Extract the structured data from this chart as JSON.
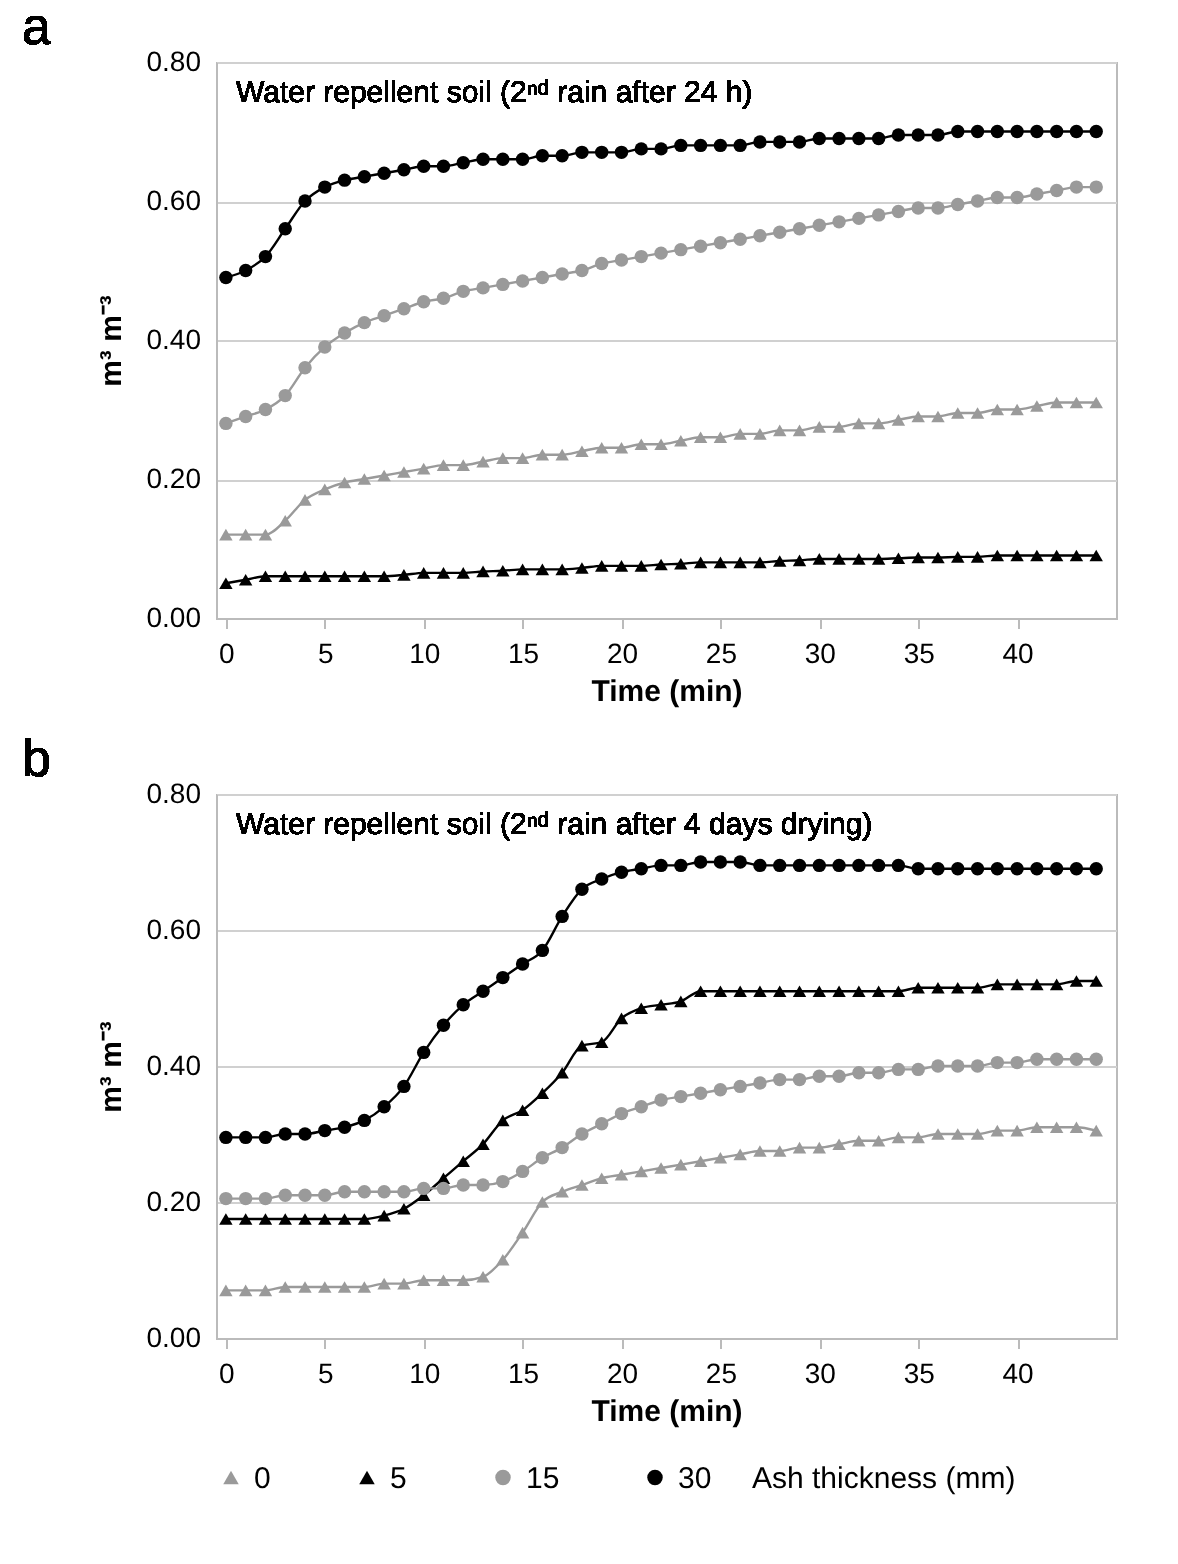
{
  "chart_data": [
    {
      "type": "line",
      "title": "Water repellent soil (2ⁿᵈ rain after 24 h)",
      "annotations": [
        "a"
      ],
      "xlabel": "Time (min)",
      "ylabel": "m³ m⁻³",
      "x": [
        0,
        1,
        2,
        3,
        4,
        5,
        6,
        7,
        8,
        9,
        10,
        11,
        12,
        13,
        14,
        15,
        16,
        17,
        18,
        19,
        20,
        21,
        22,
        23,
        24,
        25,
        26,
        27,
        28,
        29,
        30,
        31,
        32,
        33,
        34,
        35,
        36,
        37,
        38,
        39,
        40,
        41,
        42,
        43,
        44
      ],
      "xlim": [
        -0.5,
        45
      ],
      "xticks": [
        0,
        5,
        10,
        15,
        20,
        25,
        30,
        35,
        40
      ],
      "ylim": [
        0,
        0.8
      ],
      "yticks": [
        {
          "value": 0,
          "label": "0.00"
        },
        {
          "value": 0.2,
          "label": "0.20"
        },
        {
          "value": 0.4,
          "label": "0.40"
        },
        {
          "value": 0.6,
          "label": "0.60"
        },
        {
          "value": 0.8,
          "label": "0.80"
        }
      ],
      "grid": "y",
      "line_style": "solid",
      "series": [
        {
          "color": "#9a9a9a",
          "marker": "triangle",
          "values": [
            0.12,
            0.12,
            0.12,
            0.14,
            0.17,
            0.185,
            0.195,
            0.2,
            0.205,
            0.21,
            0.215,
            0.22,
            0.22,
            0.225,
            0.23,
            0.23,
            0.235,
            0.235,
            0.24,
            0.245,
            0.245,
            0.25,
            0.25,
            0.255,
            0.26,
            0.26,
            0.265,
            0.265,
            0.27,
            0.27,
            0.275,
            0.275,
            0.28,
            0.28,
            0.285,
            0.29,
            0.29,
            0.295,
            0.295,
            0.3,
            0.3,
            0.305,
            0.31,
            0.31,
            0.31
          ]
        },
        {
          "color": "#000000",
          "marker": "triangle",
          "values": [
            0.05,
            0.055,
            0.06,
            0.06,
            0.06,
            0.06,
            0.06,
            0.06,
            0.06,
            0.062,
            0.065,
            0.065,
            0.065,
            0.067,
            0.068,
            0.07,
            0.07,
            0.07,
            0.072,
            0.075,
            0.075,
            0.075,
            0.077,
            0.078,
            0.08,
            0.08,
            0.08,
            0.08,
            0.082,
            0.083,
            0.085,
            0.085,
            0.085,
            0.085,
            0.086,
            0.087,
            0.087,
            0.088,
            0.088,
            0.09,
            0.09,
            0.09,
            0.09,
            0.09,
            0.09
          ]
        },
        {
          "color": "#9a9a9a",
          "marker": "circle",
          "values": [
            0.28,
            0.29,
            0.3,
            0.32,
            0.36,
            0.39,
            0.41,
            0.425,
            0.435,
            0.445,
            0.455,
            0.46,
            0.47,
            0.475,
            0.48,
            0.485,
            0.49,
            0.495,
            0.5,
            0.51,
            0.515,
            0.52,
            0.525,
            0.53,
            0.535,
            0.54,
            0.545,
            0.55,
            0.555,
            0.56,
            0.565,
            0.57,
            0.575,
            0.58,
            0.585,
            0.59,
            0.59,
            0.595,
            0.6,
            0.605,
            0.605,
            0.61,
            0.615,
            0.62,
            0.62
          ]
        },
        {
          "color": "#000000",
          "marker": "circle",
          "values": [
            0.49,
            0.5,
            0.52,
            0.56,
            0.6,
            0.62,
            0.63,
            0.635,
            0.64,
            0.645,
            0.65,
            0.65,
            0.655,
            0.66,
            0.66,
            0.66,
            0.665,
            0.665,
            0.67,
            0.67,
            0.67,
            0.675,
            0.675,
            0.68,
            0.68,
            0.68,
            0.68,
            0.685,
            0.685,
            0.685,
            0.69,
            0.69,
            0.69,
            0.69,
            0.695,
            0.695,
            0.695,
            0.7,
            0.7,
            0.7,
            0.7,
            0.7,
            0.7,
            0.7,
            0.7
          ]
        }
      ]
    },
    {
      "type": "line",
      "title": "Water repellent soil (2ⁿᵈ rain after 4 days drying)",
      "annotations": [
        "b"
      ],
      "xlabel": "Time (min)",
      "ylabel": "m³ m⁻³",
      "legend_title": "Ash thickness (mm)",
      "x": [
        0,
        1,
        2,
        3,
        4,
        5,
        6,
        7,
        8,
        9,
        10,
        11,
        12,
        13,
        14,
        15,
        16,
        17,
        18,
        19,
        20,
        21,
        22,
        23,
        24,
        25,
        26,
        27,
        28,
        29,
        30,
        31,
        32,
        33,
        34,
        35,
        36,
        37,
        38,
        39,
        40,
        41,
        42,
        43,
        44
      ],
      "xlim": [
        -0.5,
        45
      ],
      "xticks": [
        0,
        5,
        10,
        15,
        20,
        25,
        30,
        35,
        40
      ],
      "ylim": [
        0,
        0.8
      ],
      "yticks": [
        {
          "value": 0,
          "label": "0.00"
        },
        {
          "value": 0.2,
          "label": "0.20"
        },
        {
          "value": 0.4,
          "label": "0.40"
        },
        {
          "value": 0.6,
          "label": "0.60"
        },
        {
          "value": 0.8,
          "label": "0.80"
        }
      ],
      "grid": "y",
      "legend": "bottom",
      "line_style": "solid",
      "series": [
        {
          "name": "0",
          "color": "#9a9a9a",
          "marker": "triangle",
          "values": [
            0.07,
            0.07,
            0.07,
            0.075,
            0.075,
            0.075,
            0.075,
            0.075,
            0.08,
            0.08,
            0.085,
            0.085,
            0.085,
            0.09,
            0.115,
            0.155,
            0.2,
            0.215,
            0.225,
            0.235,
            0.24,
            0.245,
            0.25,
            0.255,
            0.26,
            0.265,
            0.27,
            0.275,
            0.275,
            0.28,
            0.28,
            0.285,
            0.29,
            0.29,
            0.295,
            0.295,
            0.3,
            0.3,
            0.3,
            0.305,
            0.305,
            0.31,
            0.31,
            0.31,
            0.305
          ]
        },
        {
          "name": "5",
          "color": "#000000",
          "marker": "triangle",
          "values": [
            0.175,
            0.175,
            0.175,
            0.175,
            0.175,
            0.175,
            0.175,
            0.175,
            0.18,
            0.19,
            0.21,
            0.235,
            0.26,
            0.285,
            0.32,
            0.335,
            0.36,
            0.39,
            0.43,
            0.435,
            0.47,
            0.485,
            0.49,
            0.495,
            0.51,
            0.51,
            0.51,
            0.51,
            0.51,
            0.51,
            0.51,
            0.51,
            0.51,
            0.51,
            0.51,
            0.515,
            0.515,
            0.515,
            0.515,
            0.52,
            0.52,
            0.52,
            0.52,
            0.525,
            0.525
          ]
        },
        {
          "name": "15",
          "color": "#9a9a9a",
          "marker": "circle",
          "values": [
            0.205,
            0.205,
            0.205,
            0.21,
            0.21,
            0.21,
            0.215,
            0.215,
            0.215,
            0.215,
            0.22,
            0.22,
            0.225,
            0.225,
            0.23,
            0.245,
            0.265,
            0.28,
            0.3,
            0.315,
            0.33,
            0.34,
            0.35,
            0.355,
            0.36,
            0.365,
            0.37,
            0.375,
            0.38,
            0.38,
            0.385,
            0.385,
            0.39,
            0.39,
            0.395,
            0.395,
            0.4,
            0.4,
            0.4,
            0.405,
            0.405,
            0.41,
            0.41,
            0.41,
            0.41
          ]
        },
        {
          "name": "30",
          "color": "#000000",
          "marker": "circle",
          "values": [
            0.295,
            0.295,
            0.295,
            0.3,
            0.3,
            0.305,
            0.31,
            0.32,
            0.34,
            0.37,
            0.42,
            0.46,
            0.49,
            0.51,
            0.53,
            0.55,
            0.57,
            0.62,
            0.66,
            0.675,
            0.685,
            0.69,
            0.695,
            0.695,
            0.7,
            0.7,
            0.7,
            0.695,
            0.695,
            0.695,
            0.695,
            0.695,
            0.695,
            0.695,
            0.695,
            0.69,
            0.69,
            0.69,
            0.69,
            0.69,
            0.69,
            0.69,
            0.69,
            0.69,
            0.69
          ]
        }
      ]
    }
  ]
}
